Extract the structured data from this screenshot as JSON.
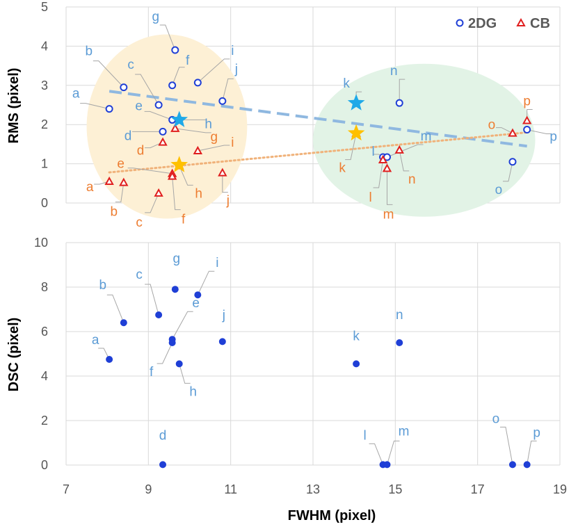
{
  "colors": {
    "blue_marker": "#1f3fd6",
    "red_marker": "#e01e1e",
    "blue_label": "#5b9bd5",
    "orange_label": "#ed7d31",
    "grid": "#d9d9d9",
    "blue_trend": "#8fb8e0",
    "orange_trend": "#f0b27a",
    "star_blue": "#1fa9e8",
    "star_orange": "#ffc000",
    "cluster_left": "#fdf0d5",
    "cluster_right": "#e2f3e6",
    "connector": "#a6a6a6"
  },
  "chart_data": [
    {
      "type": "scatter",
      "xlabel": "FWHM (pixel)",
      "ylabel": "RMS (pixel)",
      "xlim": [
        7,
        19
      ],
      "ylim": [
        0,
        5
      ],
      "x_ticks": [
        "7",
        "9",
        "11",
        "13",
        "15",
        "17",
        "19"
      ],
      "y_ticks": [
        "0",
        "1",
        "2",
        "3",
        "4",
        "5"
      ],
      "show_x_tick_labels": false,
      "grid": true,
      "legend_position": "top-right",
      "legend": [
        {
          "label": "2DG",
          "marker": "circle"
        },
        {
          "label": "CB",
          "marker": "triangle"
        }
      ],
      "series": [
        {
          "name": "2DG",
          "marker": "circle",
          "points": [
            {
              "label": "a",
              "x": 8.05,
              "y": 2.4
            },
            {
              "label": "b",
              "x": 8.4,
              "y": 2.95
            },
            {
              "label": "c",
              "x": 9.25,
              "y": 2.5
            },
            {
              "label": "d",
              "x": 9.35,
              "y": 1.82
            },
            {
              "label": "e",
              "x": 9.58,
              "y": 2.12
            },
            {
              "label": "f",
              "x": 9.58,
              "y": 3.0
            },
            {
              "label": "g",
              "x": 9.65,
              "y": 3.9
            },
            {
              "label": "h",
              "x": 9.75,
              "y": 2.12
            },
            {
              "label": "i",
              "x": 10.2,
              "y": 3.07
            },
            {
              "label": "j",
              "x": 10.8,
              "y": 2.6
            },
            {
              "label": "k",
              "x": 14.05,
              "y": 2.55
            },
            {
              "label": "l",
              "x": 14.7,
              "y": 1.17
            },
            {
              "label": "m",
              "x": 14.8,
              "y": 1.17
            },
            {
              "label": "n",
              "x": 15.1,
              "y": 2.55
            },
            {
              "label": "o",
              "x": 17.85,
              "y": 1.05
            },
            {
              "label": "p",
              "x": 18.2,
              "y": 1.87
            }
          ]
        },
        {
          "name": "CB",
          "marker": "triangle",
          "points": [
            {
              "label": "a",
              "x": 8.05,
              "y": 0.55
            },
            {
              "label": "b",
              "x": 8.4,
              "y": 0.52
            },
            {
              "label": "c",
              "x": 9.25,
              "y": 0.25
            },
            {
              "label": "d",
              "x": 9.35,
              "y": 1.55
            },
            {
              "label": "e",
              "x": 9.58,
              "y": 0.75
            },
            {
              "label": "f",
              "x": 9.58,
              "y": 0.68
            },
            {
              "label": "g",
              "x": 9.65,
              "y": 1.9
            },
            {
              "label": "h",
              "x": 9.75,
              "y": 0.95
            },
            {
              "label": "i",
              "x": 10.2,
              "y": 1.33
            },
            {
              "label": "j",
              "x": 10.8,
              "y": 0.77
            },
            {
              "label": "k",
              "x": 14.05,
              "y": 1.78
            },
            {
              "label": "l",
              "x": 14.7,
              "y": 1.1
            },
            {
              "label": "m",
              "x": 14.8,
              "y": 0.88
            },
            {
              "label": "n",
              "x": 15.1,
              "y": 1.35
            },
            {
              "label": "o",
              "x": 17.85,
              "y": 1.78
            },
            {
              "label": "p",
              "x": 18.2,
              "y": 2.1
            }
          ]
        }
      ],
      "centroids": [
        {
          "series": "2DG",
          "cluster": "left",
          "x": 9.75,
          "y": 2.12
        },
        {
          "series": "CB",
          "cluster": "left",
          "x": 9.75,
          "y": 0.97
        },
        {
          "series": "2DG",
          "cluster": "right",
          "x": 14.05,
          "y": 2.55
        },
        {
          "series": "CB",
          "cluster": "right",
          "x": 14.05,
          "y": 1.78
        }
      ],
      "trendlines": [
        {
          "series": "2DG",
          "style": "dashed",
          "x": [
            8.05,
            18.2
          ],
          "y": [
            2.85,
            1.45
          ]
        },
        {
          "series": "CB",
          "style": "dotted",
          "x": [
            8.05,
            18.2
          ],
          "y": [
            0.78,
            1.8
          ]
        }
      ],
      "clusters": [
        {
          "name": "left",
          "cx": 9.45,
          "cy": 1.95,
          "rx": 1.95,
          "ry": 2.35
        },
        {
          "name": "right",
          "cx": 15.7,
          "cy": 1.6,
          "rx": 2.7,
          "ry": 1.95
        }
      ]
    },
    {
      "type": "scatter",
      "xlabel": "FWHM (pixel)",
      "ylabel": "DSC (pixel)",
      "xlim": [
        7,
        19
      ],
      "ylim": [
        0,
        10
      ],
      "x_ticks": [
        "7",
        "9",
        "11",
        "13",
        "15",
        "17",
        "19"
      ],
      "y_ticks": [
        "0",
        "2",
        "4",
        "6",
        "8",
        "10"
      ],
      "show_x_tick_labels": true,
      "grid": true,
      "series": [
        {
          "marker": "filled-circle",
          "points": [
            {
              "label": "a",
              "x": 8.05,
              "y": 4.75
            },
            {
              "label": "b",
              "x": 8.4,
              "y": 6.4
            },
            {
              "label": "c",
              "x": 9.25,
              "y": 6.75
            },
            {
              "label": "d",
              "x": 9.35,
              "y": 0.02
            },
            {
              "label": "e",
              "x": 9.58,
              "y": 5.65
            },
            {
              "label": "f",
              "x": 9.58,
              "y": 5.5
            },
            {
              "label": "g",
              "x": 9.65,
              "y": 7.9
            },
            {
              "label": "h",
              "x": 9.75,
              "y": 4.55
            },
            {
              "label": "i",
              "x": 10.2,
              "y": 7.65
            },
            {
              "label": "j",
              "x": 10.8,
              "y": 5.55
            },
            {
              "label": "k",
              "x": 14.05,
              "y": 4.55
            },
            {
              "label": "l",
              "x": 14.7,
              "y": 0.02
            },
            {
              "label": "m",
              "x": 14.8,
              "y": 0.02
            },
            {
              "label": "n",
              "x": 15.1,
              "y": 5.5
            },
            {
              "label": "o",
              "x": 17.85,
              "y": 0.02
            },
            {
              "label": "p",
              "x": 18.2,
              "y": 0.02
            }
          ]
        }
      ]
    }
  ]
}
